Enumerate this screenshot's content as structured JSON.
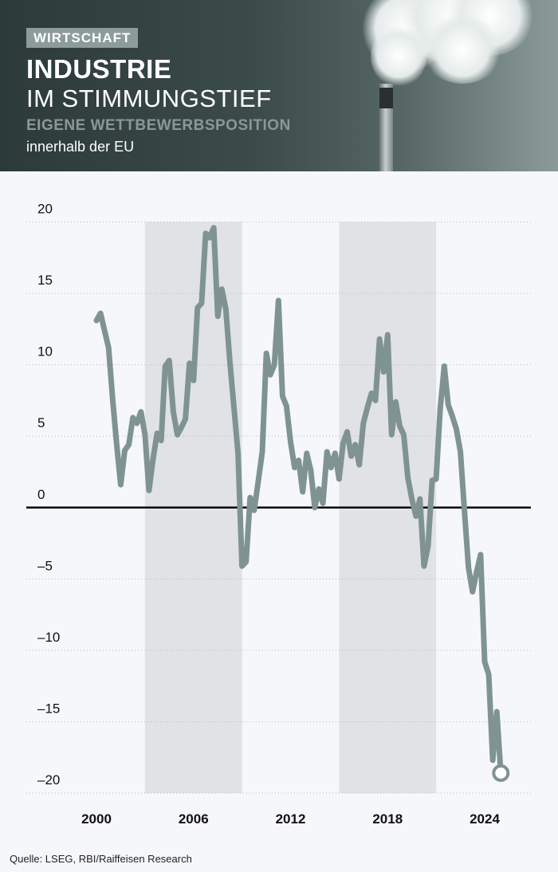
{
  "header": {
    "tag": "WIRTSCHAFT",
    "title_line1": "INDUSTRIE",
    "title_line2": "IM STIMMUNGSTIEF",
    "subtitle": "EIGENE WETTBEWERBSPOSITION",
    "subtitle2": "innerhalb der EU"
  },
  "colors": {
    "line": "#7f9392",
    "shade": "#e1e2e5",
    "zero_line": "#000000",
    "grid": "#b8b8b8"
  },
  "source": "Quelle: LSEG, RBI/Raiffeisen Research",
  "chart_data": {
    "type": "line",
    "title": "",
    "xlabel": "",
    "ylabel": "",
    "ylim": [
      -20,
      20
    ],
    "yticks": [
      20,
      15,
      10,
      5,
      0,
      -5,
      -10,
      -15,
      -20
    ],
    "ytick_labels": [
      "20",
      "15",
      "10",
      "5",
      "0",
      "–5",
      "–10",
      "–15",
      "–20"
    ],
    "xticks": [
      2000,
      2006,
      2012,
      2018,
      2024
    ],
    "xtick_labels": [
      "2000",
      "2006",
      "2012",
      "2018",
      "2024"
    ],
    "grid": "horizontal dotted",
    "shaded_periods": [
      [
        2003.0,
        2009.0
      ],
      [
        2015.0,
        2021.0
      ]
    ],
    "end_marker": "circle at last point",
    "series": [
      {
        "values": [
          [
            2000.0,
            13.1
          ],
          [
            2000.25,
            13.6
          ],
          [
            2000.5,
            12.4
          ],
          [
            2000.75,
            11.2
          ],
          [
            2001.0,
            7.6
          ],
          [
            2001.25,
            4.4
          ],
          [
            2001.5,
            1.6
          ],
          [
            2001.75,
            4.0
          ],
          [
            2002.0,
            4.4
          ],
          [
            2002.25,
            6.3
          ],
          [
            2002.5,
            5.9
          ],
          [
            2002.75,
            6.7
          ],
          [
            2003.0,
            5.1
          ],
          [
            2003.25,
            1.2
          ],
          [
            2003.5,
            3.4
          ],
          [
            2003.75,
            5.2
          ],
          [
            2004.0,
            4.7
          ],
          [
            2004.25,
            9.9
          ],
          [
            2004.5,
            10.3
          ],
          [
            2004.75,
            6.7
          ],
          [
            2005.0,
            5.1
          ],
          [
            2005.25,
            5.6
          ],
          [
            2005.5,
            6.2
          ],
          [
            2005.75,
            10.1
          ],
          [
            2006.0,
            8.9
          ],
          [
            2006.25,
            14.0
          ],
          [
            2006.5,
            14.3
          ],
          [
            2006.75,
            19.2
          ],
          [
            2007.0,
            18.9
          ],
          [
            2007.25,
            19.6
          ],
          [
            2007.5,
            13.4
          ],
          [
            2007.75,
            15.3
          ],
          [
            2008.0,
            13.9
          ],
          [
            2008.25,
            10.2
          ],
          [
            2008.5,
            7.0
          ],
          [
            2008.75,
            3.8
          ],
          [
            2009.0,
            -4.1
          ],
          [
            2009.25,
            -3.8
          ],
          [
            2009.5,
            0.7
          ],
          [
            2009.75,
            -0.2
          ],
          [
            2010.0,
            1.8
          ],
          [
            2010.25,
            3.9
          ],
          [
            2010.5,
            10.8
          ],
          [
            2010.75,
            9.3
          ],
          [
            2011.0,
            10.0
          ],
          [
            2011.25,
            14.5
          ],
          [
            2011.5,
            7.8
          ],
          [
            2011.75,
            7.1
          ],
          [
            2012.0,
            4.6
          ],
          [
            2012.25,
            2.8
          ],
          [
            2012.5,
            3.3
          ],
          [
            2012.75,
            1.1
          ],
          [
            2013.0,
            3.8
          ],
          [
            2013.25,
            2.6
          ],
          [
            2013.5,
            0.0
          ],
          [
            2013.75,
            1.3
          ],
          [
            2014.0,
            0.3
          ],
          [
            2014.25,
            3.9
          ],
          [
            2014.5,
            2.8
          ],
          [
            2014.75,
            3.8
          ],
          [
            2015.0,
            2.0
          ],
          [
            2015.25,
            4.5
          ],
          [
            2015.5,
            5.3
          ],
          [
            2015.75,
            3.6
          ],
          [
            2016.0,
            4.4
          ],
          [
            2016.25,
            3.0
          ],
          [
            2016.5,
            5.9
          ],
          [
            2016.75,
            7.0
          ],
          [
            2017.0,
            8.0
          ],
          [
            2017.25,
            7.5
          ],
          [
            2017.5,
            11.8
          ],
          [
            2017.75,
            9.5
          ],
          [
            2018.0,
            12.1
          ],
          [
            2018.25,
            5.1
          ],
          [
            2018.5,
            7.4
          ],
          [
            2018.75,
            5.7
          ],
          [
            2019.0,
            5.1
          ],
          [
            2019.25,
            2.1
          ],
          [
            2019.5,
            0.6
          ],
          [
            2019.75,
            -0.6
          ],
          [
            2020.0,
            0.6
          ],
          [
            2020.25,
            -4.1
          ],
          [
            2020.5,
            -2.7
          ],
          [
            2020.75,
            1.9
          ],
          [
            2021.0,
            2.0
          ],
          [
            2021.25,
            6.9
          ],
          [
            2021.5,
            9.9
          ],
          [
            2021.75,
            7.2
          ],
          [
            2022.0,
            6.4
          ],
          [
            2022.25,
            5.5
          ],
          [
            2022.5,
            3.9
          ],
          [
            2022.75,
            -0.2
          ],
          [
            2023.0,
            -4.2
          ],
          [
            2023.25,
            -5.9
          ],
          [
            2023.5,
            -4.5
          ],
          [
            2023.75,
            -3.3
          ],
          [
            2024.0,
            -10.8
          ],
          [
            2024.25,
            -11.7
          ],
          [
            2024.5,
            -17.7
          ],
          [
            2024.75,
            -14.3
          ],
          [
            2025.0,
            -18.6
          ]
        ]
      }
    ]
  }
}
